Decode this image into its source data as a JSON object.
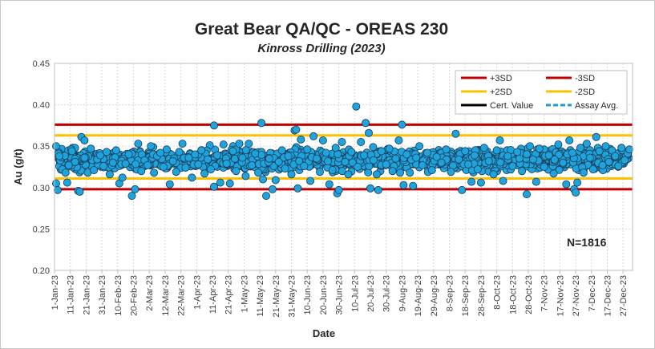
{
  "chart_data": {
    "type": "scatter",
    "title": "Great Bear QA/QC - OREAS 230",
    "subtitle": "Kinross Drilling (2023)",
    "xlabel": "Date",
    "ylabel": "Au (g/t)",
    "ylim": [
      0.2,
      0.45
    ],
    "ytick_labels": [
      "0.20",
      "0.25",
      "0.30",
      "0.35",
      "0.40",
      "0.45"
    ],
    "xlim": [
      "2023-01-01",
      "2024-01-02"
    ],
    "xtick_labels": [
      "1-Jan-23",
      "11-Jan-23",
      "21-Jan-23",
      "31-Jan-23",
      "10-Feb-23",
      "20-Feb-23",
      "2-Mar-23",
      "12-Mar-23",
      "22-Mar-23",
      "1-Apr-23",
      "11-Apr-23",
      "21-Apr-23",
      "1-May-23",
      "11-May-23",
      "21-May-23",
      "31-May-23",
      "10-Jun-23",
      "20-Jun-23",
      "30-Jun-23",
      "10-Jul-23",
      "20-Jul-23",
      "30-Jul-23",
      "9-Aug-23",
      "19-Aug-23",
      "29-Aug-23",
      "8-Sep-23",
      "18-Sep-23",
      "28-Sep-23",
      "8-Oct-23",
      "18-Oct-23",
      "28-Oct-23",
      "7-Nov-23",
      "17-Nov-23",
      "27-Nov-23",
      "7-Dec-23",
      "17-Dec-23",
      "27-Dec-23"
    ],
    "grid": true,
    "legend_position": "top-right",
    "reference_lines": [
      {
        "name": "+3SD",
        "value": 0.376,
        "color": "#c00000",
        "style": "solid"
      },
      {
        "name": "-3SD",
        "value": 0.298,
        "color": "#c00000",
        "style": "solid"
      },
      {
        "name": "+2SD",
        "value": 0.363,
        "color": "#ffc000",
        "style": "solid"
      },
      {
        "name": "-2SD",
        "value": 0.311,
        "color": "#ffc000",
        "style": "solid"
      },
      {
        "name": "Cert. Value",
        "value": 0.337,
        "color": "#000000",
        "style": "solid"
      },
      {
        "name": "Assay Avg.",
        "value": 0.336,
        "color": "#1f9bde",
        "style": "dashed"
      }
    ],
    "annotation": "N=1816",
    "point_color": "#1fa3dc",
    "point_stroke": "#1a3a55",
    "points": [
      [
        "2023-01-02",
        0.35
      ],
      [
        "2023-01-02",
        0.305
      ],
      [
        "2023-01-03",
        0.297
      ],
      [
        "2023-01-04",
        0.338
      ],
      [
        "2023-01-06",
        0.322
      ],
      [
        "2023-01-08",
        0.318
      ],
      [
        "2023-01-09",
        0.306
      ],
      [
        "2023-01-10",
        0.327
      ],
      [
        "2023-01-12",
        0.344
      ],
      [
        "2023-01-14",
        0.331
      ],
      [
        "2023-01-16",
        0.296
      ],
      [
        "2023-01-17",
        0.295
      ],
      [
        "2023-01-18",
        0.361
      ],
      [
        "2023-01-20",
        0.357
      ],
      [
        "2023-01-20",
        0.336
      ],
      [
        "2023-01-22",
        0.318
      ],
      [
        "2023-01-24",
        0.347
      ],
      [
        "2023-01-26",
        0.321
      ],
      [
        "2023-01-28",
        0.334
      ],
      [
        "2023-01-30",
        0.339
      ],
      [
        "2023-02-01",
        0.326
      ],
      [
        "2023-02-03",
        0.343
      ],
      [
        "2023-02-05",
        0.316
      ],
      [
        "2023-02-07",
        0.33
      ],
      [
        "2023-02-09",
        0.345
      ],
      [
        "2023-02-11",
        0.305
      ],
      [
        "2023-02-13",
        0.312
      ],
      [
        "2023-02-15",
        0.329
      ],
      [
        "2023-02-17",
        0.34
      ],
      [
        "2023-02-19",
        0.29
      ],
      [
        "2023-02-21",
        0.298
      ],
      [
        "2023-02-23",
        0.353
      ],
      [
        "2023-02-25",
        0.32
      ],
      [
        "2023-02-27",
        0.333
      ],
      [
        "2023-03-01",
        0.327
      ],
      [
        "2023-03-03",
        0.35
      ],
      [
        "2023-03-05",
        0.318
      ],
      [
        "2023-03-07",
        0.338
      ],
      [
        "2023-03-09",
        0.342
      ],
      [
        "2023-03-11",
        0.325
      ],
      [
        "2023-03-13",
        0.346
      ],
      [
        "2023-03-15",
        0.304
      ],
      [
        "2023-03-17",
        0.332
      ],
      [
        "2023-03-19",
        0.319
      ],
      [
        "2023-03-21",
        0.343
      ],
      [
        "2023-03-23",
        0.353
      ],
      [
        "2023-03-25",
        0.324
      ],
      [
        "2023-03-27",
        0.336
      ],
      [
        "2023-03-29",
        0.312
      ],
      [
        "2023-03-31",
        0.34
      ],
      [
        "2023-04-02",
        0.328
      ],
      [
        "2023-04-04",
        0.345
      ],
      [
        "2023-04-06",
        0.317
      ],
      [
        "2023-04-08",
        0.334
      ],
      [
        "2023-04-10",
        0.322
      ],
      [
        "2023-04-12",
        0.375
      ],
      [
        "2023-04-12",
        0.301
      ],
      [
        "2023-04-14",
        0.339
      ],
      [
        "2023-04-16",
        0.306
      ],
      [
        "2023-04-18",
        0.352
      ],
      [
        "2023-04-20",
        0.329
      ],
      [
        "2023-04-22",
        0.305
      ],
      [
        "2023-04-24",
        0.344
      ],
      [
        "2023-04-26",
        0.32
      ],
      [
        "2023-04-28",
        0.353
      ],
      [
        "2023-04-30",
        0.336
      ],
      [
        "2023-05-02",
        0.314
      ],
      [
        "2023-05-04",
        0.353
      ],
      [
        "2023-05-06",
        0.327
      ],
      [
        "2023-05-08",
        0.341
      ],
      [
        "2023-05-10",
        0.318
      ],
      [
        "2023-05-12",
        0.378
      ],
      [
        "2023-05-13",
        0.31
      ],
      [
        "2023-05-15",
        0.29
      ],
      [
        "2023-05-17",
        0.335
      ],
      [
        "2023-05-19",
        0.298
      ],
      [
        "2023-05-21",
        0.309
      ],
      [
        "2023-05-23",
        0.331
      ],
      [
        "2023-05-25",
        0.345
      ],
      [
        "2023-05-27",
        0.323
      ],
      [
        "2023-05-29",
        0.338
      ],
      [
        "2023-05-31",
        0.316
      ],
      [
        "2023-06-02",
        0.369
      ],
      [
        "2023-06-03",
        0.37
      ],
      [
        "2023-06-04",
        0.299
      ],
      [
        "2023-06-06",
        0.358
      ],
      [
        "2023-06-08",
        0.326
      ],
      [
        "2023-06-10",
        0.346
      ],
      [
        "2023-06-12",
        0.308
      ],
      [
        "2023-06-14",
        0.362
      ],
      [
        "2023-06-16",
        0.335
      ],
      [
        "2023-06-18",
        0.319
      ],
      [
        "2023-06-20",
        0.357
      ],
      [
        "2023-06-22",
        0.342
      ],
      [
        "2023-06-24",
        0.304
      ],
      [
        "2023-06-26",
        0.321
      ],
      [
        "2023-06-28",
        0.348
      ],
      [
        "2023-06-29",
        0.293
      ],
      [
        "2023-06-30",
        0.297
      ],
      [
        "2023-07-02",
        0.355
      ],
      [
        "2023-07-04",
        0.331
      ],
      [
        "2023-07-06",
        0.316
      ],
      [
        "2023-07-08",
        0.343
      ],
      [
        "2023-07-11",
        0.398
      ],
      [
        "2023-07-12",
        0.325
      ],
      [
        "2023-07-14",
        0.355
      ],
      [
        "2023-07-16",
        0.339
      ],
      [
        "2023-07-17",
        0.378
      ],
      [
        "2023-07-19",
        0.366
      ],
      [
        "2023-07-20",
        0.299
      ],
      [
        "2023-07-22",
        0.333
      ],
      [
        "2023-07-24",
        0.316
      ],
      [
        "2023-07-25",
        0.297
      ],
      [
        "2023-07-27",
        0.344
      ],
      [
        "2023-07-30",
        0.328
      ],
      [
        "2023-08-01",
        0.347
      ],
      [
        "2023-08-03",
        0.32
      ],
      [
        "2023-08-05",
        0.335
      ],
      [
        "2023-08-07",
        0.357
      ],
      [
        "2023-08-09",
        0.376
      ],
      [
        "2023-08-10",
        0.303
      ],
      [
        "2023-08-12",
        0.34
      ],
      [
        "2023-08-14",
        0.318
      ],
      [
        "2023-08-16",
        0.302
      ],
      [
        "2023-08-18",
        0.336
      ],
      [
        "2023-08-20",
        0.35
      ],
      [
        "2023-08-22",
        0.327
      ],
      [
        "2023-08-25",
        0.342
      ],
      [
        "2023-08-28",
        0.321
      ],
      [
        "2023-08-31",
        0.337
      ],
      [
        "2023-09-03",
        0.33
      ],
      [
        "2023-09-06",
        0.346
      ],
      [
        "2023-09-09",
        0.319
      ],
      [
        "2023-09-12",
        0.365
      ],
      [
        "2023-09-14",
        0.334
      ],
      [
        "2023-09-16",
        0.297
      ],
      [
        "2023-09-18",
        0.344
      ],
      [
        "2023-09-20",
        0.328
      ],
      [
        "2023-09-22",
        0.307
      ],
      [
        "2023-09-24",
        0.339
      ],
      [
        "2023-09-26",
        0.322
      ],
      [
        "2023-09-28",
        0.306
      ],
      [
        "2023-09-30",
        0.348
      ],
      [
        "2023-10-03",
        0.332
      ],
      [
        "2023-10-06",
        0.316
      ],
      [
        "2023-10-08",
        0.345
      ],
      [
        "2023-10-10",
        0.357
      ],
      [
        "2023-10-12",
        0.308
      ],
      [
        "2023-10-15",
        0.338
      ],
      [
        "2023-10-18",
        0.326
      ],
      [
        "2023-10-21",
        0.343
      ],
      [
        "2023-10-24",
        0.32
      ],
      [
        "2023-10-27",
        0.292
      ],
      [
        "2023-10-29",
        0.35
      ],
      [
        "2023-10-31",
        0.334
      ],
      [
        "2023-11-02",
        0.307
      ],
      [
        "2023-11-04",
        0.347
      ],
      [
        "2023-11-07",
        0.325
      ],
      [
        "2023-11-10",
        0.339
      ],
      [
        "2023-11-13",
        0.317
      ],
      [
        "2023-11-16",
        0.352
      ],
      [
        "2023-11-19",
        0.33
      ],
      [
        "2023-11-21",
        0.304
      ],
      [
        "2023-11-23",
        0.357
      ],
      [
        "2023-11-25",
        0.342
      ],
      [
        "2023-11-26",
        0.298
      ],
      [
        "2023-11-27",
        0.294
      ],
      [
        "2023-11-28",
        0.306
      ],
      [
        "2023-11-30",
        0.348
      ],
      [
        "2023-12-02",
        0.318
      ],
      [
        "2023-12-04",
        0.353
      ],
      [
        "2023-12-06",
        0.336
      ],
      [
        "2023-12-08",
        0.322
      ],
      [
        "2023-12-10",
        0.361
      ],
      [
        "2023-12-12",
        0.344
      ],
      [
        "2023-12-14",
        0.327
      ],
      [
        "2023-12-16",
        0.35
      ],
      [
        "2023-12-18",
        0.331
      ],
      [
        "2023-12-20",
        0.345
      ],
      [
        "2023-12-22",
        0.338
      ],
      [
        "2023-12-24",
        0.326
      ],
      [
        "2023-12-26",
        0.348
      ],
      [
        "2023-12-28",
        0.333
      ],
      [
        "2023-12-30",
        0.341
      ],
      [
        "2023-12-31",
        0.346
      ]
    ]
  }
}
